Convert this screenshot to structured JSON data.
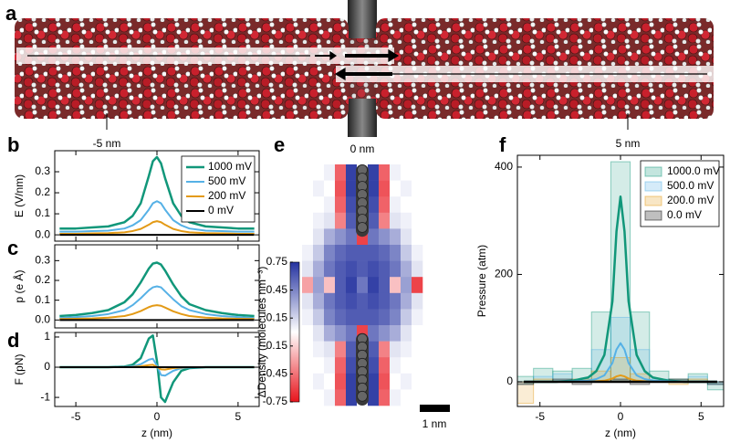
{
  "panel_a": {
    "panel": "a",
    "labels": [
      "-5 nm",
      "0 nm",
      "5 nm"
    ]
  },
  "chart_data": [
    {
      "type": "line",
      "panel": "b",
      "ylabel": "E (V/nm)",
      "show_xtick_labels": false,
      "x": [
        -6,
        -5,
        -4,
        -3,
        -2,
        -1.5,
        -1,
        -0.5,
        -0.25,
        0,
        0.25,
        0.5,
        1,
        1.5,
        2,
        3,
        4,
        5,
        6
      ],
      "xlim": [
        -6.3,
        6.3
      ],
      "xticks": [
        -5,
        0,
        5
      ],
      "ylim": [
        -0.03,
        0.4
      ],
      "yticks": [
        {
          "value": 0,
          "label": "0.0"
        },
        0.1,
        0.2,
        0.3
      ],
      "legend": "upper right",
      "series": [
        {
          "name": "1000 mV",
          "color": "#11977a",
          "width": 2.5,
          "values": [
            0.03,
            0.03,
            0.035,
            0.04,
            0.06,
            0.09,
            0.15,
            0.28,
            0.35,
            0.37,
            0.34,
            0.27,
            0.15,
            0.09,
            0.06,
            0.04,
            0.035,
            0.03,
            0.03
          ]
        },
        {
          "name": "500 mV",
          "color": "#56b1e6",
          "width": 2,
          "values": [
            0.015,
            0.015,
            0.018,
            0.02,
            0.03,
            0.045,
            0.07,
            0.12,
            0.15,
            0.16,
            0.15,
            0.12,
            0.07,
            0.045,
            0.03,
            0.02,
            0.018,
            0.015,
            0.015
          ]
        },
        {
          "name": "200 mV",
          "color": "#e39a16",
          "width": 2,
          "values": [
            0.005,
            0.005,
            0.007,
            0.008,
            0.012,
            0.018,
            0.028,
            0.048,
            0.06,
            0.065,
            0.06,
            0.048,
            0.028,
            0.018,
            0.012,
            0.008,
            0.007,
            0.005,
            0.005
          ]
        },
        {
          "name": "0 mV",
          "color": "#000000",
          "width": 2,
          "values": [
            0,
            0,
            0,
            0,
            0,
            0,
            0,
            0,
            0,
            0,
            0,
            0,
            0,
            0,
            0,
            0,
            0,
            0,
            0
          ]
        }
      ]
    },
    {
      "type": "line",
      "panel": "c",
      "ylabel": "p (e Å)",
      "show_xtick_labels": false,
      "x": [
        -6,
        -5,
        -4,
        -3,
        -2,
        -1.5,
        -1,
        -0.5,
        -0.25,
        0,
        0.25,
        0.5,
        1,
        1.5,
        2,
        3,
        4,
        5,
        6
      ],
      "xlim": [
        -6.3,
        6.3
      ],
      "xticks": [
        -5,
        0,
        5
      ],
      "ylim": [
        -0.04,
        0.38
      ],
      "yticks": [
        {
          "value": 0,
          "label": "0.0"
        },
        0.1,
        0.2,
        0.3
      ],
      "series": [
        {
          "name": "1000 mV",
          "color": "#11977a",
          "width": 2.5,
          "values": [
            0.02,
            0.025,
            0.035,
            0.05,
            0.09,
            0.13,
            0.19,
            0.26,
            0.285,
            0.29,
            0.28,
            0.25,
            0.18,
            0.12,
            0.08,
            0.05,
            0.035,
            0.025,
            0.02
          ]
        },
        {
          "name": "500 mV",
          "color": "#56b1e6",
          "width": 2,
          "values": [
            0.01,
            0.015,
            0.02,
            0.03,
            0.05,
            0.075,
            0.11,
            0.15,
            0.165,
            0.17,
            0.165,
            0.145,
            0.105,
            0.07,
            0.05,
            0.03,
            0.02,
            0.015,
            0.01
          ]
        },
        {
          "name": "200 mV",
          "color": "#e39a16",
          "width": 2,
          "values": [
            0.005,
            0.006,
            0.008,
            0.012,
            0.02,
            0.03,
            0.045,
            0.065,
            0.072,
            0.075,
            0.072,
            0.063,
            0.044,
            0.03,
            0.02,
            0.012,
            0.008,
            0.006,
            0.005
          ]
        },
        {
          "name": "0 mV",
          "color": "#000000",
          "width": 2,
          "values": [
            0,
            0,
            0,
            0,
            0,
            0,
            0,
            0,
            0,
            0,
            0,
            0,
            0,
            0,
            0,
            0,
            0,
            0,
            0
          ]
        }
      ]
    },
    {
      "type": "line",
      "panel": "d",
      "ylabel": "F (pN)",
      "xlabel": "z (nm)",
      "x": [
        -6,
        -5,
        -4,
        -3,
        -2,
        -1.5,
        -1,
        -0.5,
        -0.25,
        0,
        0.25,
        0.5,
        1,
        1.5,
        2,
        3,
        4,
        5,
        6
      ],
      "xlim": [
        -6.3,
        6.3
      ],
      "xticks": [
        -5,
        0,
        5
      ],
      "ylim": [
        -1.3,
        1.15
      ],
      "yticks": [
        -1,
        0,
        1
      ],
      "series": [
        {
          "name": "1000 mV",
          "color": "#11977a",
          "width": 2.5,
          "values": [
            0,
            0,
            0,
            0,
            0.02,
            0.08,
            0.3,
            0.95,
            1.05,
            0.2,
            -1.0,
            -1.15,
            -0.5,
            -0.12,
            -0.03,
            0,
            0,
            0,
            0
          ]
        },
        {
          "name": "500 mV",
          "color": "#56b1e6",
          "width": 2,
          "values": [
            0,
            0,
            0,
            0,
            0.01,
            0.03,
            0.1,
            0.25,
            0.28,
            0.05,
            -0.26,
            -0.28,
            -0.12,
            -0.03,
            -0.01,
            0,
            0,
            0,
            0
          ]
        },
        {
          "name": "200 mV",
          "color": "#e39a16",
          "width": 2,
          "values": [
            0,
            0,
            0,
            0,
            0,
            0.01,
            0.03,
            0.07,
            0.08,
            0.01,
            -0.07,
            -0.08,
            -0.03,
            -0.01,
            0,
            0,
            0,
            0,
            0
          ]
        },
        {
          "name": "0 mV",
          "color": "#000000",
          "width": 2,
          "values": [
            0,
            0,
            0,
            0,
            0,
            0,
            0,
            0,
            0,
            0,
            0,
            0,
            0,
            0,
            0,
            0,
            0,
            0,
            0
          ]
        }
      ]
    },
    {
      "type": "heatmap",
      "panel": "e",
      "colorbar_label": "ΔDensity (molecules nm⁻³)",
      "scale_label": "1 nm",
      "clim": [
        -0.75,
        0.75
      ],
      "cticks": [
        0.75,
        0.45,
        0.15,
        -0.15,
        -0.45,
        -0.75
      ],
      "colors": [
        "#e8141c",
        "#ffffff",
        "#2533a0"
      ],
      "z": [
        [
          0,
          0,
          0.05,
          -0.5,
          0.7,
          0,
          0.7,
          -0.5,
          0.05,
          0,
          0
        ],
        [
          0,
          0.05,
          0,
          -0.55,
          0.7,
          0,
          0.7,
          -0.55,
          0,
          0.05,
          0
        ],
        [
          0,
          0,
          0.05,
          -0.5,
          0.65,
          0,
          0.65,
          -0.5,
          0.05,
          0,
          0
        ],
        [
          0,
          0.05,
          0.1,
          -0.4,
          0.6,
          0,
          0.6,
          -0.4,
          0.1,
          0.05,
          0
        ],
        [
          0,
          0.1,
          0.3,
          0.4,
          0.5,
          -0.6,
          0.5,
          0.4,
          0.3,
          0.1,
          0
        ],
        [
          0.05,
          0.2,
          0.45,
          0.55,
          0.6,
          0.6,
          0.6,
          0.55,
          0.45,
          0.2,
          0.05
        ],
        [
          0.1,
          0.3,
          0.5,
          0.6,
          0.65,
          0.6,
          0.65,
          0.6,
          0.5,
          0.3,
          0.1
        ],
        [
          -0.3,
          0.35,
          -0.2,
          0.6,
          0.7,
          0.5,
          0.7,
          0.6,
          -0.2,
          0.35,
          -0.6
        ],
        [
          0.1,
          0.3,
          0.5,
          0.6,
          0.65,
          0.6,
          0.65,
          0.6,
          0.5,
          0.3,
          0.1
        ],
        [
          0.05,
          0.2,
          0.45,
          0.55,
          0.6,
          0.6,
          0.6,
          0.55,
          0.45,
          0.2,
          0.05
        ],
        [
          0,
          0.1,
          0.3,
          0.4,
          0.5,
          -0.6,
          0.5,
          0.4,
          0.3,
          0.1,
          0
        ],
        [
          0,
          0.05,
          0.1,
          -0.4,
          0.6,
          0,
          0.6,
          -0.4,
          0.1,
          0.05,
          0
        ],
        [
          0,
          0,
          0.05,
          -0.5,
          0.65,
          0,
          0.65,
          -0.5,
          0.05,
          0,
          0
        ],
        [
          0,
          0.05,
          0,
          -0.55,
          0.7,
          0,
          0.7,
          -0.55,
          0,
          0.05,
          0
        ],
        [
          0,
          0,
          0.05,
          -0.5,
          0.7,
          0,
          0.7,
          -0.5,
          0.05,
          0,
          0
        ]
      ]
    },
    {
      "type": "histogram",
      "panel": "f",
      "ylabel": "Pressure (atm)",
      "xlabel": "z (nm)",
      "bins": [
        -6.6,
        -5.4,
        -4.2,
        -3,
        -1.8,
        -0.6,
        0.6,
        1.8,
        3,
        4.2,
        5.4,
        6.6
      ],
      "x": [
        -6,
        -5,
        -4,
        -3,
        -2,
        -1.5,
        -1,
        -0.5,
        -0.25,
        0,
        0.25,
        0.5,
        1,
        1.5,
        2,
        3,
        4,
        5,
        6
      ],
      "xlim": [
        -6.4,
        6.4
      ],
      "xticks": [
        -5,
        0,
        5
      ],
      "ylim": [
        -46,
        422
      ],
      "yticks": [
        0,
        200,
        400
      ],
      "legend": "upper right",
      "series": [
        {
          "name": "1000.0 mV",
          "color": "#11977a",
          "width": 2.5,
          "values": [
            10,
            25,
            20,
            25,
            130,
            410,
            130,
            20,
            5,
            15,
            -15
          ],
          "curve": [
            0,
            0,
            0,
            2,
            8,
            20,
            50,
            150,
            280,
            345,
            280,
            150,
            50,
            20,
            8,
            2,
            0,
            0,
            0
          ]
        },
        {
          "name": "500.0 mV",
          "color": "#56b1e6",
          "width": 2,
          "values": [
            -5,
            10,
            15,
            5,
            60,
            120,
            60,
            5,
            0,
            10,
            -5
          ],
          "curve": [
            0,
            0,
            0,
            1,
            2,
            5,
            12,
            35,
            60,
            72,
            60,
            35,
            12,
            5,
            2,
            1,
            0,
            0,
            0
          ]
        },
        {
          "name": "200.0 mV",
          "color": "#e39a16",
          "width": 2,
          "values": [
            -40,
            5,
            0,
            5,
            20,
            45,
            15,
            0,
            -5,
            5,
            0
          ],
          "curve": [
            0,
            0,
            0,
            0,
            0,
            1,
            2,
            6,
            10,
            12,
            10,
            6,
            2,
            1,
            0,
            0,
            0,
            0,
            0
          ]
        },
        {
          "name": "0.0 mV",
          "color": "#000000",
          "width": 2.5,
          "values": [
            -5,
            0,
            5,
            -5,
            0,
            5,
            -5,
            0,
            5,
            0,
            -5
          ],
          "curve": [
            0,
            0,
            0,
            0,
            0,
            0,
            0,
            0,
            0,
            0,
            0,
            0,
            0,
            0,
            0,
            0,
            0,
            0,
            0
          ]
        }
      ]
    }
  ]
}
